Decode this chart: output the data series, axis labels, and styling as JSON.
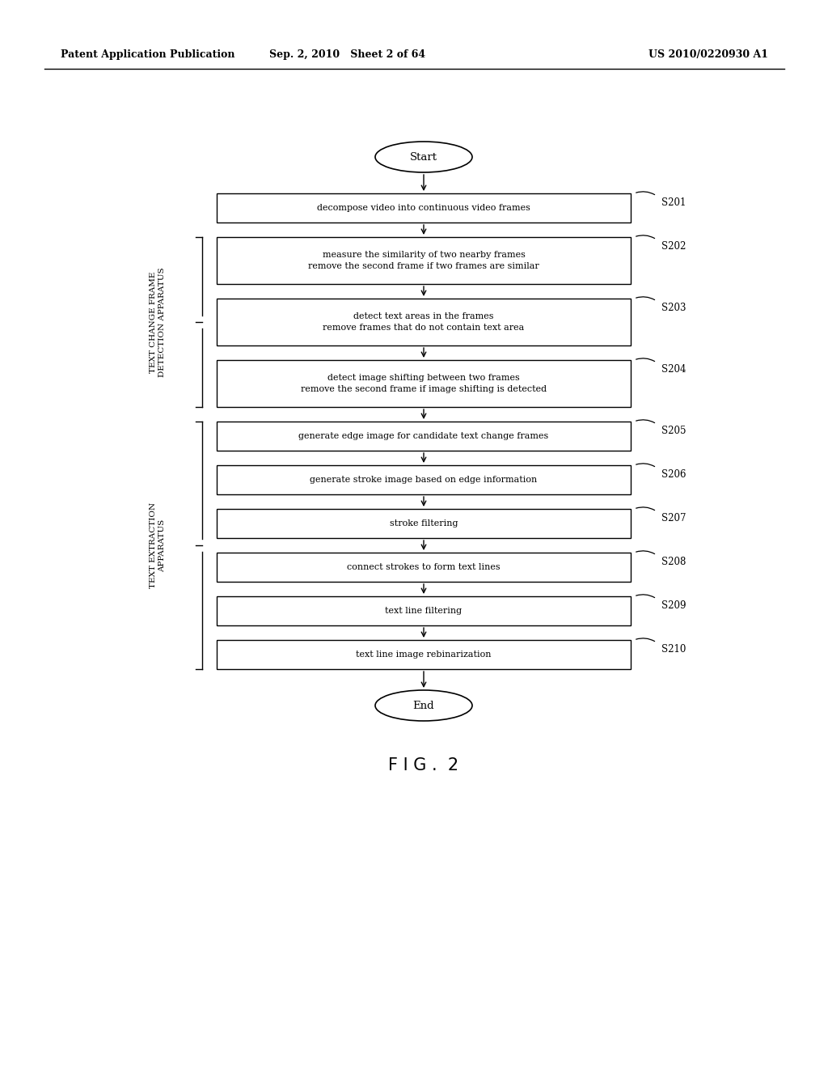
{
  "header_left": "Patent Application Publication",
  "header_mid": "Sep. 2, 2010   Sheet 2 of 64",
  "header_right": "US 2010/0220930 A1",
  "figure_label": "F I G .  2",
  "background_color": "#ffffff",
  "steps": [
    {
      "id": "S201",
      "text": "decompose video into continuous video frames",
      "lines": 1
    },
    {
      "id": "S202",
      "text": "measure the similarity of two nearby frames\nremove the second frame if two frames are similar",
      "lines": 2
    },
    {
      "id": "S203",
      "text": "detect text areas in the frames\nremove frames that do not contain text area",
      "lines": 2
    },
    {
      "id": "S204",
      "text": "detect image shifting between two frames\nremove the second frame if image shifting is detected",
      "lines": 2
    },
    {
      "id": "S205",
      "text": "generate edge image for candidate text change frames",
      "lines": 1
    },
    {
      "id": "S206",
      "text": "generate stroke image based on edge information",
      "lines": 1
    },
    {
      "id": "S207",
      "text": "stroke filtering",
      "lines": 1
    },
    {
      "id": "S208",
      "text": "connect strokes to form text lines",
      "lines": 1
    },
    {
      "id": "S209",
      "text": "text line filtering",
      "lines": 1
    },
    {
      "id": "S210",
      "text": "text line image rebinarization",
      "lines": 1
    }
  ],
  "brace1_label": "TEXT CHANGE FRAME\nDETECTION APPARATUS",
  "brace1_steps": [
    1,
    2,
    3
  ],
  "brace2_label": "TEXT EXTRACTION\nAPPARATUS",
  "brace2_steps": [
    4,
    5,
    6,
    7,
    8,
    9
  ]
}
